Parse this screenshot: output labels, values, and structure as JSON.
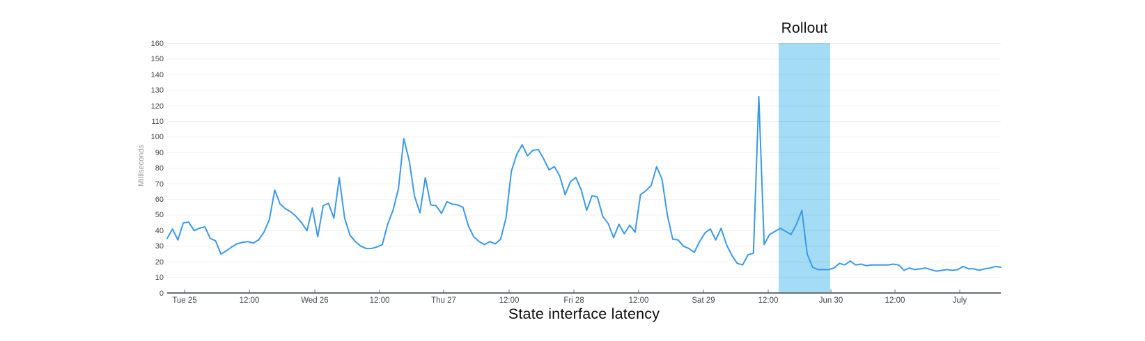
{
  "chart_data": {
    "type": "line",
    "title": "State interface latency",
    "ylabel": "Milliseconds",
    "xlabel": "",
    "ylim": [
      0,
      160
    ],
    "y_tick_step": 10,
    "grid": "horizontal",
    "legend": "none",
    "x_ticks": [
      {
        "label": "Tue 25",
        "f": 0.0209
      },
      {
        "label": "12:00",
        "f": 0.0986
      },
      {
        "label": "Wed 26",
        "f": 0.1771
      },
      {
        "label": "12:00",
        "f": 0.2548
      },
      {
        "label": "Thu 27",
        "f": 0.3317
      },
      {
        "label": "12:00",
        "f": 0.4102
      },
      {
        "label": "Fri 28",
        "f": 0.4879
      },
      {
        "label": "12:00",
        "f": 0.5656
      },
      {
        "label": "Sat 29",
        "f": 0.6433
      },
      {
        "label": "12:00",
        "f": 0.721
      },
      {
        "label": "Jun 30",
        "f": 0.7962
      },
      {
        "label": "12:00",
        "f": 0.873
      },
      {
        "label": "July",
        "f": 0.9507
      }
    ],
    "series": [
      {
        "name": "State interface latency (ms)",
        "values": [
          35,
          41,
          34,
          45,
          45.5,
          40,
          41.5,
          42.5,
          35,
          33.5,
          25,
          27,
          29.5,
          31.5,
          32.5,
          33,
          32,
          34,
          39,
          47,
          66,
          57,
          54,
          52,
          49,
          45,
          40,
          54.5,
          36,
          56,
          57.5,
          48,
          74,
          48,
          37,
          33,
          30,
          28.5,
          28.5,
          29.5,
          31,
          44,
          53,
          67,
          99,
          85,
          62,
          51.5,
          74,
          56.5,
          56,
          51,
          58.5,
          57,
          56.5,
          55,
          43,
          36,
          33,
          31,
          33,
          31.5,
          34.5,
          48,
          78,
          89,
          95,
          88,
          91.5,
          92,
          86,
          79,
          81,
          75,
          63,
          71.5,
          74,
          66,
          53,
          62.5,
          61.5,
          49,
          44.5,
          35.5,
          44,
          38,
          43.5,
          39,
          63,
          65.5,
          69,
          81,
          73,
          50,
          34.5,
          34,
          30,
          28.5,
          26,
          33,
          38.5,
          41,
          34,
          41.5,
          31,
          24,
          19,
          18,
          24.5,
          25.5,
          126,
          31,
          37.5,
          39.5,
          41.5,
          39.5,
          37.5,
          44,
          53,
          25,
          16.5,
          15,
          15,
          15,
          16,
          19,
          18,
          20.5,
          18,
          18.5,
          17.5,
          18,
          18,
          18,
          18,
          18.5,
          18,
          14.5,
          16,
          15,
          15.5,
          16,
          15,
          14,
          14.5,
          15,
          14.5,
          15,
          17,
          15.5,
          15.5,
          14.5,
          15.5,
          16,
          17,
          16.5
        ]
      }
    ],
    "annotation": {
      "label": "Rollout",
      "type": "vertical-band",
      "f_start": 0.7335,
      "f_end": 0.7953
    }
  },
  "colors": {
    "line": "#3b99e8",
    "band": "#a3dcf4",
    "axis": "#696e74",
    "tick_label": "#43474c",
    "title": "#0d0d0d",
    "grid": "#ededed"
  }
}
